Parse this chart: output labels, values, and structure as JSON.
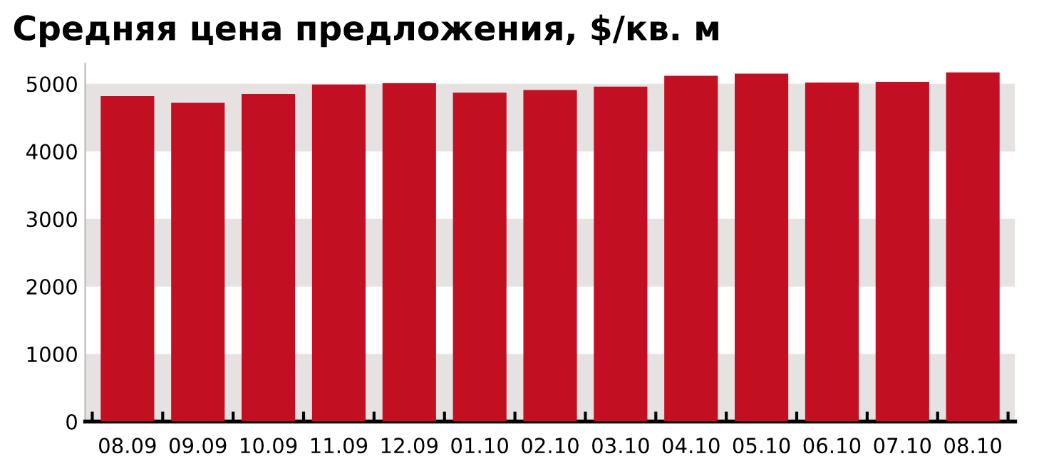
{
  "chart_data": {
    "type": "bar",
    "title": "Средняя цена предложения, $/кв. м",
    "categories": [
      "08.09",
      "09.09",
      "10.09",
      "11.09",
      "12.09",
      "01.10",
      "02.10",
      "03.10",
      "04.10",
      "05.10",
      "06.10",
      "07.10",
      "08.10"
    ],
    "values": [
      4820,
      4720,
      4850,
      4990,
      5010,
      4870,
      4910,
      4960,
      5120,
      5150,
      5020,
      5030,
      5170
    ],
    "color": "#c20f22",
    "ylim": [
      0,
      5300
    ],
    "yticks": [
      0,
      1000,
      2000,
      3000,
      4000,
      5000
    ],
    "bands": [
      {
        "axis": "y",
        "from": 0,
        "to": 1000,
        "color": "#e6e2e2"
      },
      {
        "axis": "y",
        "from": 2000,
        "to": 3000,
        "color": "#e6e2e2"
      },
      {
        "axis": "y",
        "from": 4000,
        "to": 5000,
        "color": "#e6e2e2"
      }
    ]
  }
}
